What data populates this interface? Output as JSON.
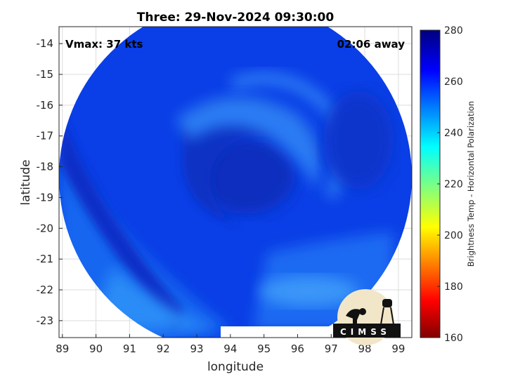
{
  "chart_data": {
    "type": "heatmap",
    "title": "Three: 29-Nov-2024 09:30:00",
    "xlabel": "longitude",
    "ylabel": "latitude",
    "xlim": [
      88.9,
      99.4
    ],
    "ylim": [
      -23.55,
      -13.45
    ],
    "xticks": [
      "89",
      "90",
      "91",
      "92",
      "93",
      "94",
      "95",
      "96",
      "97",
      "98",
      "99"
    ],
    "yticks": [
      "-14",
      "-15",
      "-16",
      "-17",
      "-18",
      "-19",
      "-20",
      "-21",
      "-22",
      "-23"
    ],
    "grid": true,
    "annotations": {
      "vmax": "Vmax: 37 kts",
      "time_away": "02:06 away"
    },
    "colorbar": {
      "label": "Brightness Temp - Horizontal Polarization",
      "range": [
        160,
        280
      ],
      "ticks": [
        "160",
        "180",
        "200",
        "220",
        "240",
        "260",
        "280"
      ],
      "colormap": "jet"
    },
    "swath": {
      "center_lon": 94.35,
      "center_lat": -18.4,
      "typical_value": 264,
      "storm_center": [
        94.6,
        -18.3
      ]
    },
    "logo": {
      "text": "CIMSS"
    }
  }
}
